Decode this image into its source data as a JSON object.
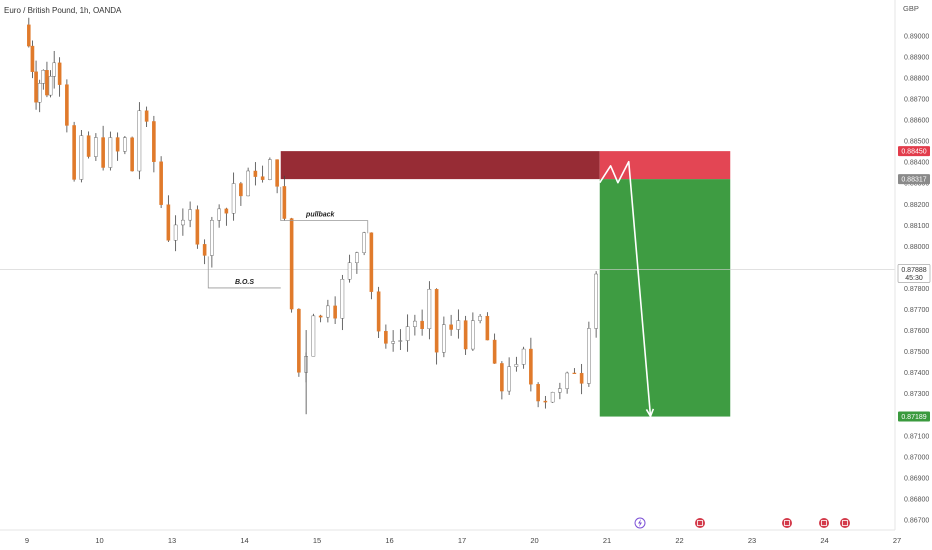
{
  "header": {
    "symbol_title": "Euro / British Pound, 1h, OANDA"
  },
  "axis": {
    "currency": "GBP"
  },
  "badges": {
    "stop": "0.88450",
    "entry": "0.88317",
    "last_price": "0.87888",
    "countdown": "45:30",
    "target": "0.87189"
  },
  "annotations": {
    "bos": "B.O.S",
    "pullback": "pullback"
  },
  "colors": {
    "up": "#ffffff",
    "down": "#e07a2b",
    "wick": "#444444",
    "stop_zone": "#e23c4b",
    "supply_zone": "#8e1a24",
    "profit_zone": "#3a9a3e",
    "axis_text": "#555555"
  },
  "events": [
    "lightning-icon",
    "flag-icon",
    "flag-icon",
    "flag-icon",
    "flag-icon"
  ],
  "chart_data": {
    "type": "candlestick",
    "title": "Euro / British Pound, 1h, OANDA",
    "y_unit": "GBP",
    "ylim": [
      0.8665,
      0.8913
    ],
    "y_ticks": [
      0.867,
      0.868,
      0.869,
      0.87,
      0.871,
      0.872,
      0.873,
      0.874,
      0.875,
      0.876,
      0.877,
      0.878,
      0.879,
      0.88,
      0.881,
      0.882,
      0.883,
      0.884,
      0.885,
      0.886,
      0.887,
      0.888,
      0.889,
      0.89
    ],
    "x_ticks": [
      "9",
      "10",
      "13",
      "14",
      "15",
      "16",
      "17",
      "20",
      "21",
      "22",
      "23",
      "24",
      "27"
    ],
    "price_path": [
      [
        0.0,
        0.8905
      ],
      [
        0.05,
        0.8895
      ],
      [
        0.1,
        0.8885
      ],
      [
        0.15,
        0.8872
      ],
      [
        0.2,
        0.8878
      ],
      [
        0.25,
        0.8882
      ],
      [
        0.3,
        0.8874
      ],
      [
        0.35,
        0.888
      ],
      [
        0.4,
        0.8891
      ],
      [
        0.5,
        0.888
      ],
      [
        0.6,
        0.886
      ],
      [
        0.7,
        0.883
      ],
      [
        0.8,
        0.8848
      ],
      [
        0.9,
        0.8842
      ],
      [
        1.0,
        0.8849
      ],
      [
        1.1,
        0.8841
      ],
      [
        1.2,
        0.8848
      ],
      [
        1.3,
        0.8844
      ],
      [
        1.4,
        0.885
      ],
      [
        1.5,
        0.8836
      ],
      [
        1.6,
        0.8865
      ],
      [
        1.7,
        0.8855
      ],
      [
        1.8,
        0.884
      ],
      [
        1.9,
        0.882
      ],
      [
        2.0,
        0.8805
      ],
      [
        2.1,
        0.8812
      ],
      [
        2.2,
        0.8808
      ],
      [
        2.3,
        0.8815
      ],
      [
        2.4,
        0.8805
      ],
      [
        2.5,
        0.8798
      ],
      [
        2.6,
        0.881
      ],
      [
        2.7,
        0.8822
      ],
      [
        2.8,
        0.8816
      ],
      [
        2.9,
        0.883
      ],
      [
        3.0,
        0.8824
      ],
      [
        3.1,
        0.8832
      ],
      [
        3.2,
        0.8836
      ],
      [
        3.3,
        0.883
      ],
      [
        3.4,
        0.8838
      ],
      [
        3.5,
        0.8832
      ],
      [
        3.6,
        0.881
      ],
      [
        3.7,
        0.877
      ],
      [
        3.8,
        0.874
      ],
      [
        3.9,
        0.875
      ],
      [
        4.0,
        0.877
      ],
      [
        4.1,
        0.8765
      ],
      [
        4.2,
        0.8775
      ],
      [
        4.3,
        0.877
      ],
      [
        4.4,
        0.8782
      ],
      [
        4.5,
        0.879
      ],
      [
        4.6,
        0.8798
      ],
      [
        4.7,
        0.881
      ],
      [
        4.8,
        0.878
      ],
      [
        4.9,
        0.876
      ],
      [
        5.0,
        0.875
      ],
      [
        5.1,
        0.8758
      ],
      [
        5.2,
        0.8755
      ],
      [
        5.3,
        0.8762
      ],
      [
        5.4,
        0.8765
      ],
      [
        5.5,
        0.8758
      ],
      [
        5.6,
        0.8775
      ],
      [
        5.7,
        0.875
      ],
      [
        5.8,
        0.8762
      ],
      [
        5.9,
        0.8758
      ],
      [
        6.0,
        0.8765
      ],
      [
        6.1,
        0.8755
      ],
      [
        6.2,
        0.876
      ],
      [
        6.3,
        0.8765
      ],
      [
        6.4,
        0.8755
      ],
      [
        6.5,
        0.874
      ],
      [
        6.6,
        0.8732
      ],
      [
        6.7,
        0.8745
      ],
      [
        6.8,
        0.874
      ],
      [
        6.9,
        0.8748
      ],
      [
        7.0,
        0.8735
      ],
      [
        7.1,
        0.873
      ],
      [
        7.2,
        0.8728
      ],
      [
        7.3,
        0.8732
      ],
      [
        7.4,
        0.873
      ],
      [
        7.5,
        0.8736
      ],
      [
        7.6,
        0.8742
      ],
      [
        7.7,
        0.8738
      ],
      [
        7.8,
        0.8765
      ],
      [
        7.9,
        0.8788
      ]
    ],
    "projection": [
      [
        7.9,
        0.883
      ],
      [
        8.05,
        0.8838
      ],
      [
        8.15,
        0.883
      ],
      [
        8.3,
        0.884
      ],
      [
        8.6,
        0.8719
      ]
    ],
    "levels": {
      "stop": 0.8845,
      "entry": 0.88317,
      "last": 0.87888,
      "target": 0.87189
    },
    "zones": [
      {
        "name": "supply",
        "x0": 3.5,
        "x1": 7.9,
        "y0": 0.88317,
        "y1": 0.8845
      },
      {
        "name": "stop",
        "x0": 7.9,
        "x1": 9.7,
        "y0": 0.88317,
        "y1": 0.8845
      },
      {
        "name": "target",
        "x0": 7.9,
        "x1": 9.7,
        "y0": 0.87189,
        "y1": 0.88317
      }
    ],
    "marks": [
      {
        "label": "B.O.S",
        "x0": 2.5,
        "x1": 3.5,
        "y": 0.878
      },
      {
        "label": "pullback",
        "x0": 3.5,
        "x1": 4.7,
        "y": 0.8812
      }
    ]
  }
}
